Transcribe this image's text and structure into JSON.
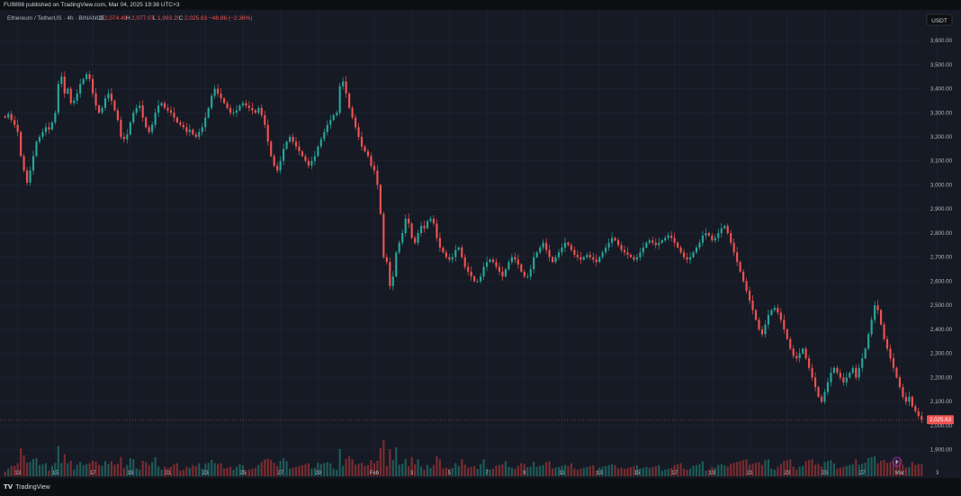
{
  "header": {
    "published": "FU9898 published on TradingView.com, Mar 04, 2025 19:38 UTC+3"
  },
  "legend": {
    "symbol": "Ethereum / TetherUS · 4h · BINANCE",
    "o_label": "O",
    "o": "2,074.49",
    "h_label": "H",
    "h": "2,077.07",
    "l_label": "L",
    "l": "1,993.20",
    "c_label": "C",
    "c": "2,025.63",
    "change": "−48.86 (−2.36%)"
  },
  "currency_badge": "USDT",
  "last_price": "2,025.63",
  "footer": {
    "brand": "TradingView"
  },
  "colors": {
    "background": "#161a25",
    "grid": "#232838",
    "up": "#26a69a",
    "down": "#ef5350",
    "up_volume": "#1e5b58",
    "down_volume": "#7a2c2f",
    "text": "#b2b5be"
  },
  "chart_data": {
    "type": "candlestick",
    "title": "Ethereum / TetherUS · 4h · BINANCE",
    "ylim": [
      1835,
      3660
    ],
    "y_ticks": [
      1900,
      2000,
      2100,
      2200,
      2300,
      2400,
      2500,
      2600,
      2700,
      2800,
      2900,
      3000,
      3100,
      3200,
      3300,
      3400,
      3500,
      3600
    ],
    "y_tick_labels": [
      "1,900.00",
      "2,000.00",
      "2,100.00",
      "2,200.00",
      "2,300.00",
      "2,400.00",
      "2,500.00",
      "2,600.00",
      "2,700.00",
      "2,800.00",
      "2,900.00",
      "3,000.00",
      "3,100.00",
      "3,200.00",
      "3,300.00",
      "3,400.00",
      "3,500.00",
      "3,600.00"
    ],
    "x_ticks": [
      {
        "label": "13",
        "index": 4
      },
      {
        "label": "15",
        "index": 16
      },
      {
        "label": "17",
        "index": 28
      },
      {
        "label": "19",
        "index": 40
      },
      {
        "label": "21",
        "index": 52
      },
      {
        "label": "23",
        "index": 64
      },
      {
        "label": "25",
        "index": 76
      },
      {
        "label": "27",
        "index": 88
      },
      {
        "label": "29",
        "index": 100
      },
      {
        "label": "Feb",
        "index": 118
      },
      {
        "label": "3",
        "index": 130
      },
      {
        "label": "5",
        "index": 142
      },
      {
        "label": "7",
        "index": 154
      },
      {
        "label": "9",
        "index": 166
      },
      {
        "label": "11",
        "index": 178
      },
      {
        "label": "13",
        "index": 190
      },
      {
        "label": "15",
        "index": 202
      },
      {
        "label": "17",
        "index": 214
      },
      {
        "label": "19",
        "index": 226
      },
      {
        "label": "21",
        "index": 238
      },
      {
        "label": "23",
        "index": 250
      },
      {
        "label": "25",
        "index": 262
      },
      {
        "label": "27",
        "index": 274
      },
      {
        "label": "Mar",
        "index": 286
      },
      {
        "label": "3",
        "index": 298
      },
      {
        "label": "5",
        "index": 310
      }
    ],
    "closes": [
      3280,
      3295,
      3270,
      3250,
      3220,
      3120,
      3060,
      3010,
      3060,
      3120,
      3180,
      3200,
      3220,
      3240,
      3230,
      3260,
      3300,
      3420,
      3450,
      3380,
      3400,
      3340,
      3350,
      3380,
      3420,
      3440,
      3460,
      3440,
      3380,
      3330,
      3300,
      3320,
      3360,
      3380,
      3350,
      3310,
      3270,
      3200,
      3190,
      3210,
      3260,
      3300,
      3320,
      3330,
      3280,
      3240,
      3220,
      3250,
      3300,
      3330,
      3340,
      3320,
      3310,
      3300,
      3280,
      3260,
      3250,
      3240,
      3220,
      3230,
      3210,
      3200,
      3220,
      3240,
      3280,
      3320,
      3370,
      3400,
      3380,
      3360,
      3340,
      3320,
      3300,
      3300,
      3310,
      3330,
      3340,
      3330,
      3320,
      3310,
      3300,
      3320,
      3290,
      3250,
      3180,
      3120,
      3080,
      3060,
      3100,
      3150,
      3180,
      3200,
      3180,
      3160,
      3140,
      3120,
      3100,
      3080,
      3100,
      3120,
      3160,
      3190,
      3220,
      3250,
      3270,
      3290,
      3300,
      3410,
      3430,
      3380,
      3320,
      3280,
      3240,
      3200,
      3160,
      3140,
      3120,
      3080,
      3060,
      3000,
      2880,
      2700,
      2680,
      2580,
      2620,
      2720,
      2760,
      2800,
      2860,
      2840,
      2780,
      2760,
      2800,
      2830,
      2820,
      2850,
      2860,
      2840,
      2780,
      2740,
      2720,
      2700,
      2690,
      2700,
      2730,
      2740,
      2700,
      2660,
      2640,
      2620,
      2600,
      2600,
      2620,
      2660,
      2680,
      2690,
      2680,
      2660,
      2640,
      2620,
      2650,
      2680,
      2700,
      2690,
      2670,
      2640,
      2620,
      2620,
      2650,
      2700,
      2720,
      2740,
      2760,
      2730,
      2700,
      2680,
      2700,
      2720,
      2740,
      2760,
      2750,
      2730,
      2710,
      2700,
      2690,
      2700,
      2710,
      2700,
      2690,
      2680,
      2700,
      2720,
      2740,
      2760,
      2780,
      2770,
      2750,
      2730,
      2720,
      2710,
      2700,
      2690,
      2700,
      2720,
      2740,
      2760,
      2770,
      2760,
      2750,
      2760,
      2770,
      2780,
      2790,
      2780,
      2760,
      2740,
      2720,
      2700,
      2690,
      2700,
      2720,
      2740,
      2760,
      2790,
      2800,
      2790,
      2770,
      2780,
      2800,
      2820,
      2830,
      2800,
      2760,
      2720,
      2680,
      2640,
      2600,
      2560,
      2520,
      2480,
      2440,
      2400,
      2380,
      2420,
      2460,
      2480,
      2490,
      2470,
      2440,
      2400,
      2360,
      2320,
      2290,
      2280,
      2300,
      2320,
      2280,
      2240,
      2200,
      2160,
      2120,
      2100,
      2140,
      2180,
      2220,
      2240,
      2220,
      2200,
      2180,
      2200,
      2220,
      2240,
      2200,
      2240,
      2280,
      2320,
      2380,
      2440,
      2500,
      2480,
      2420,
      2360,
      2320,
      2280,
      2240,
      2200,
      2160,
      2120,
      2100,
      2120,
      2080,
      2060,
      2040,
      2025
    ]
  }
}
